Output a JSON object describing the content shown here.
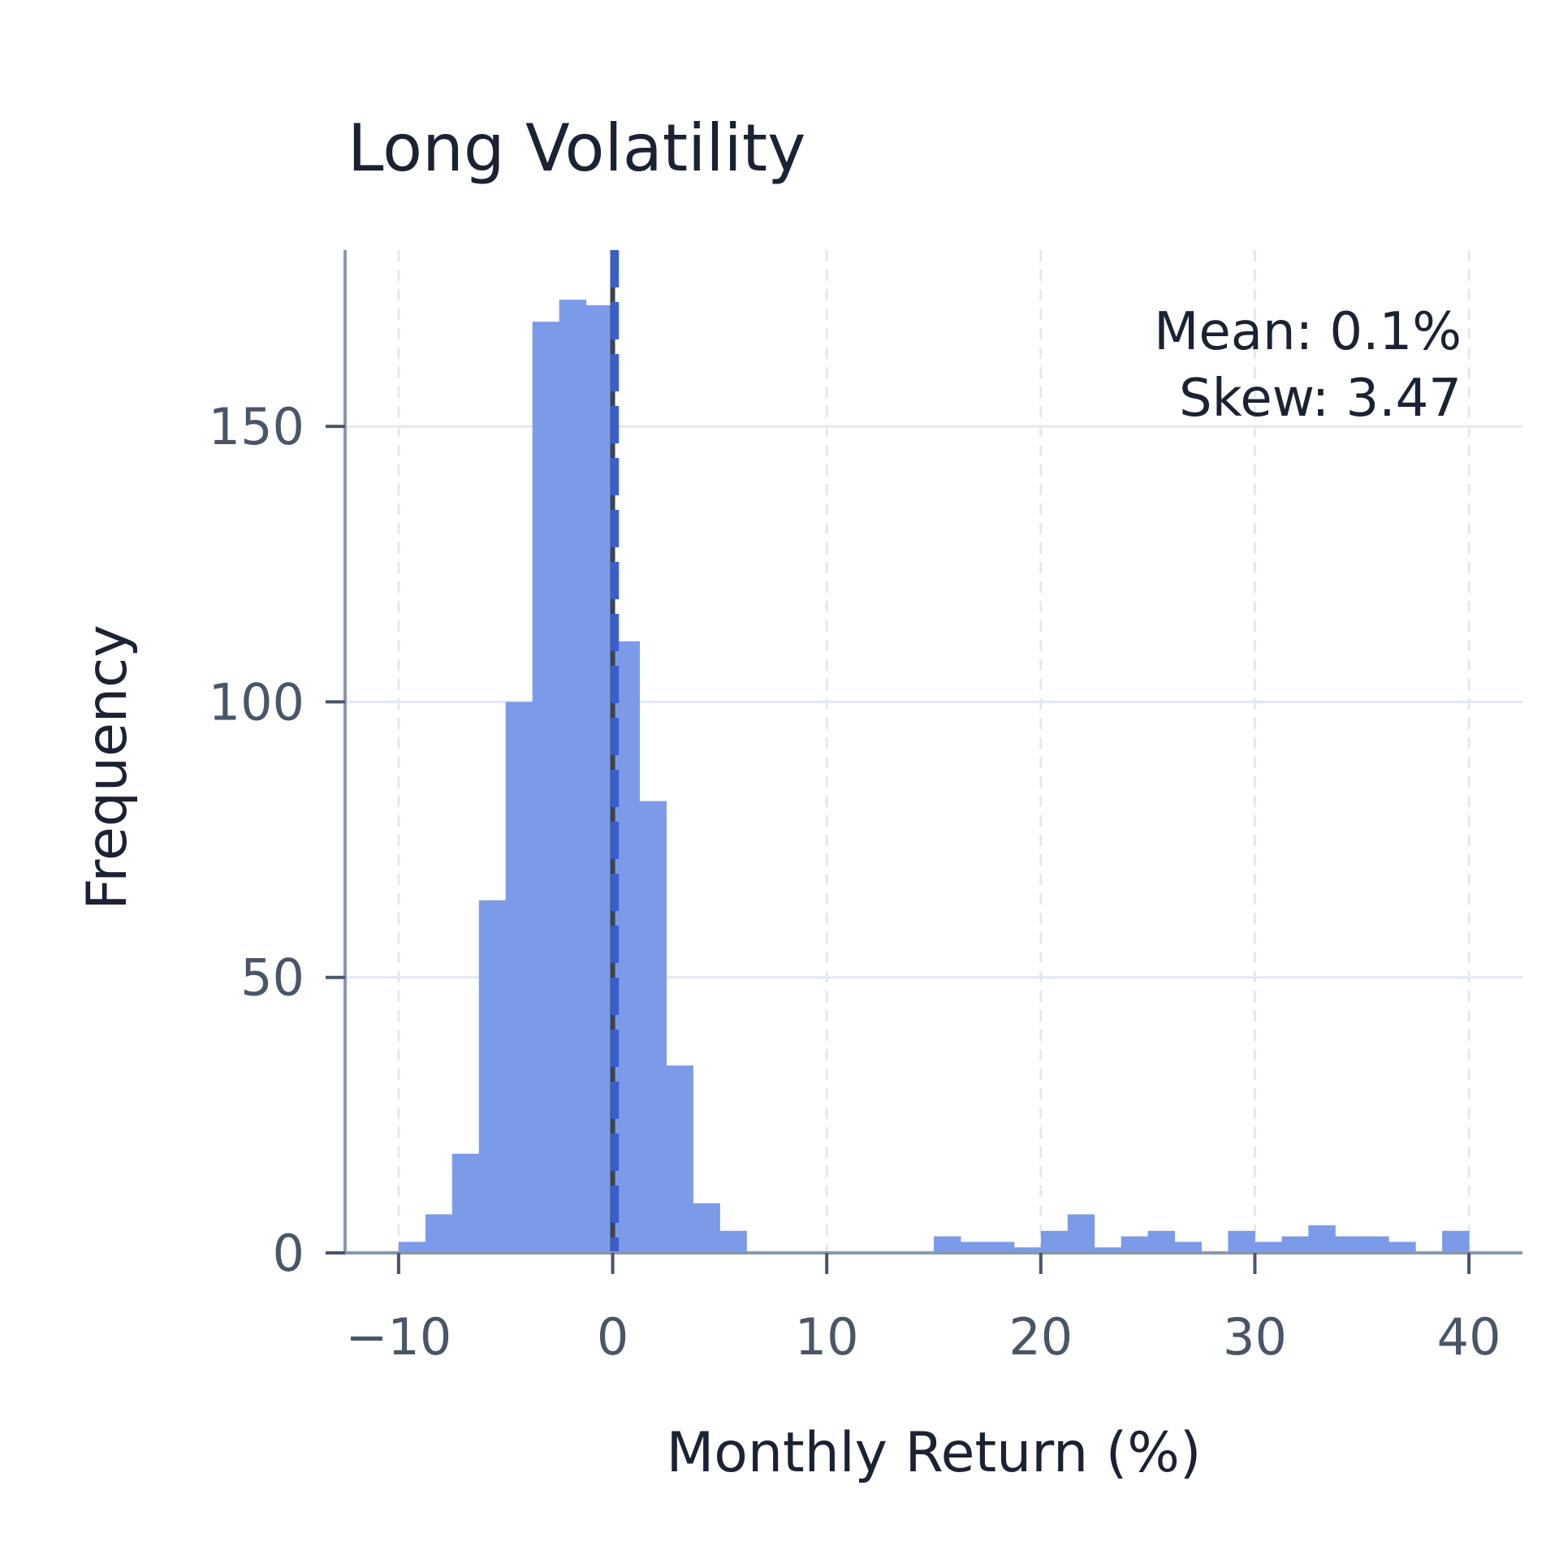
{
  "chart_data": {
    "type": "bar",
    "title": "Long Volatility",
    "xlabel": "Monthly Return (%)",
    "ylabel": "Frequency",
    "xlim": [
      -12.5,
      42.5
    ],
    "ylim": [
      0,
      182
    ],
    "x_ticks": [
      -10,
      0,
      10,
      20,
      30,
      40
    ],
    "y_ticks": [
      0,
      50,
      100,
      150
    ],
    "grid": true,
    "bin_width": 1.25,
    "bins": [
      {
        "x0": -10.0,
        "x1": -8.75,
        "count": 2
      },
      {
        "x0": -8.75,
        "x1": -7.5,
        "count": 7
      },
      {
        "x0": -7.5,
        "x1": -6.25,
        "count": 18
      },
      {
        "x0": -6.25,
        "x1": -5.0,
        "count": 64
      },
      {
        "x0": -5.0,
        "x1": -3.75,
        "count": 100
      },
      {
        "x0": -3.75,
        "x1": -2.5,
        "count": 169
      },
      {
        "x0": -2.5,
        "x1": -1.25,
        "count": 173
      },
      {
        "x0": -1.25,
        "x1": 0.0,
        "count": 172
      },
      {
        "x0": 0.0,
        "x1": 1.25,
        "count": 111
      },
      {
        "x0": 1.25,
        "x1": 2.5,
        "count": 82
      },
      {
        "x0": 2.5,
        "x1": 3.75,
        "count": 34
      },
      {
        "x0": 3.75,
        "x1": 5.0,
        "count": 9
      },
      {
        "x0": 5.0,
        "x1": 6.25,
        "count": 4
      },
      {
        "x0": 6.25,
        "x1": 7.5,
        "count": 0
      },
      {
        "x0": 7.5,
        "x1": 8.75,
        "count": 0
      },
      {
        "x0": 8.75,
        "x1": 10.0,
        "count": 0
      },
      {
        "x0": 10.0,
        "x1": 11.25,
        "count": 0
      },
      {
        "x0": 11.25,
        "x1": 12.5,
        "count": 0
      },
      {
        "x0": 12.5,
        "x1": 13.75,
        "count": 0
      },
      {
        "x0": 13.75,
        "x1": 15.0,
        "count": 0
      },
      {
        "x0": 15.0,
        "x1": 16.25,
        "count": 3
      },
      {
        "x0": 16.25,
        "x1": 17.5,
        "count": 2
      },
      {
        "x0": 17.5,
        "x1": 18.75,
        "count": 2
      },
      {
        "x0": 18.75,
        "x1": 20.0,
        "count": 1
      },
      {
        "x0": 20.0,
        "x1": 21.25,
        "count": 4
      },
      {
        "x0": 21.25,
        "x1": 22.5,
        "count": 7
      },
      {
        "x0": 22.5,
        "x1": 23.75,
        "count": 1
      },
      {
        "x0": 23.75,
        "x1": 25.0,
        "count": 3
      },
      {
        "x0": 25.0,
        "x1": 26.25,
        "count": 4
      },
      {
        "x0": 26.25,
        "x1": 27.5,
        "count": 2
      },
      {
        "x0": 27.5,
        "x1": 28.75,
        "count": 0
      },
      {
        "x0": 28.75,
        "x1": 30.0,
        "count": 4
      },
      {
        "x0": 30.0,
        "x1": 31.25,
        "count": 2
      },
      {
        "x0": 31.25,
        "x1": 32.5,
        "count": 3
      },
      {
        "x0": 32.5,
        "x1": 33.75,
        "count": 5
      },
      {
        "x0": 33.75,
        "x1": 35.0,
        "count": 3
      },
      {
        "x0": 35.0,
        "x1": 36.25,
        "count": 3
      },
      {
        "x0": 36.25,
        "x1": 37.5,
        "count": 2
      },
      {
        "x0": 37.5,
        "x1": 38.75,
        "count": 0
      },
      {
        "x0": 38.75,
        "x1": 40.0,
        "count": 4
      }
    ],
    "mean_line": {
      "x": 0.1,
      "style": "dashed"
    },
    "annotations": [
      "Mean: 0.1%",
      "Skew: 3.47"
    ],
    "annotation_placement": "top-right",
    "colors": {
      "bar": "#7b9be8",
      "mean_line": "#3a5fcd",
      "zero_line": "#3d4350",
      "axis": "#8a98ab",
      "grid": "#e3e8ef"
    }
  }
}
